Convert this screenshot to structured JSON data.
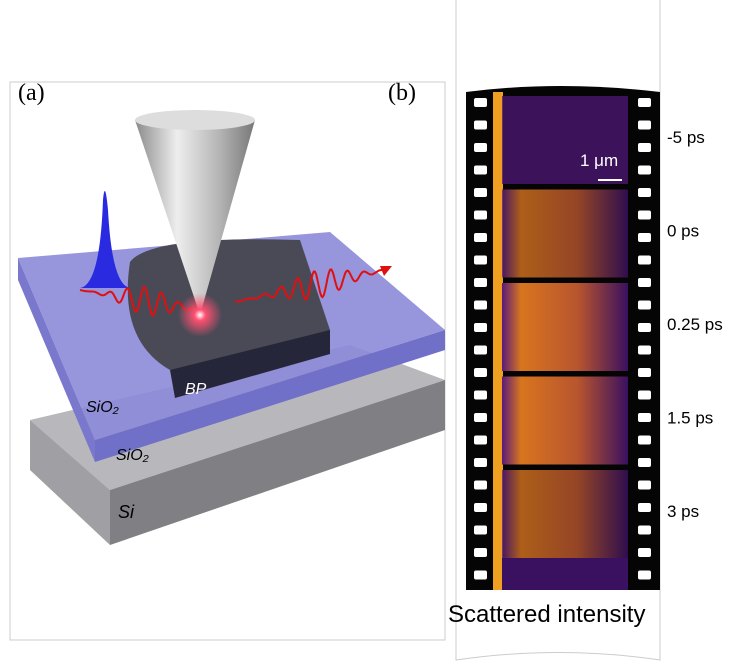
{
  "panel_a": {
    "label": "(a)",
    "layers": [
      "BP",
      "SiO₂",
      "SiO₂",
      "Si"
    ]
  },
  "panel_b": {
    "label": "(b)",
    "scale_bar": "1 μm",
    "frames": [
      "-5 ps",
      "0 ps",
      "0.25 ps",
      "1.5 ps",
      "3 ps"
    ],
    "caption": "Scattered intensity"
  }
}
